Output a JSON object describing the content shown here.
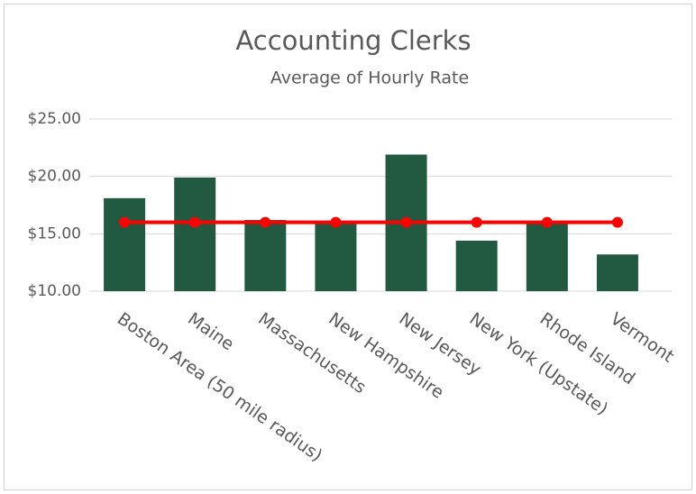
{
  "chart_data": {
    "type": "bar",
    "title": "Accounting Clerks",
    "subtitle": "Average of Hourly Rate",
    "categories": [
      "Boston Area (50 mile radius)",
      "Maine",
      "Massachusetts",
      "New Hampshire",
      "New Jersey",
      "New York (Upstate)",
      "Rhode Island",
      "Vermont"
    ],
    "series": [
      {
        "type": "bar",
        "color": "#215a40",
        "values": [
          18.1,
          19.9,
          16.2,
          16.1,
          21.9,
          14.4,
          16.0,
          13.2
        ]
      },
      {
        "type": "line",
        "color": "#ff0000",
        "values": [
          16.0,
          16.0,
          16.0,
          16.0,
          16.0,
          16.0,
          16.0,
          16.0
        ]
      }
    ],
    "ylim": [
      10,
      25
    ],
    "yticks": [
      {
        "value": 10,
        "label": "$10.00"
      },
      {
        "value": 15,
        "label": "$15.00"
      },
      {
        "value": 20,
        "label": "$20.00"
      },
      {
        "value": 25,
        "label": "$25.00"
      }
    ],
    "grid": true
  }
}
